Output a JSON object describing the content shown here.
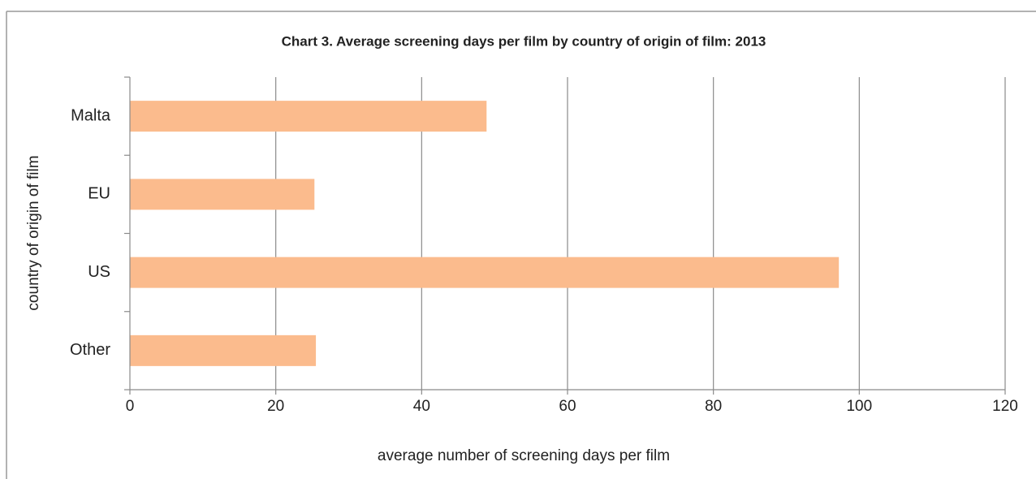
{
  "chart_data": {
    "type": "bar",
    "orientation": "horizontal",
    "title": "Chart 3. Average screening days per film by country of origin of film: 2013",
    "x_label": "average number of screening days per film",
    "y_label": "country of origin of film",
    "categories": [
      "Malta",
      "EU",
      "US",
      "Other"
    ],
    "values": [
      48.9,
      25.3,
      97.2,
      25.5
    ],
    "color": "#fbbb8d",
    "xlim": [
      0,
      120
    ],
    "xticks": [
      0,
      20,
      40,
      60,
      80,
      100,
      120
    ],
    "grid": true
  }
}
